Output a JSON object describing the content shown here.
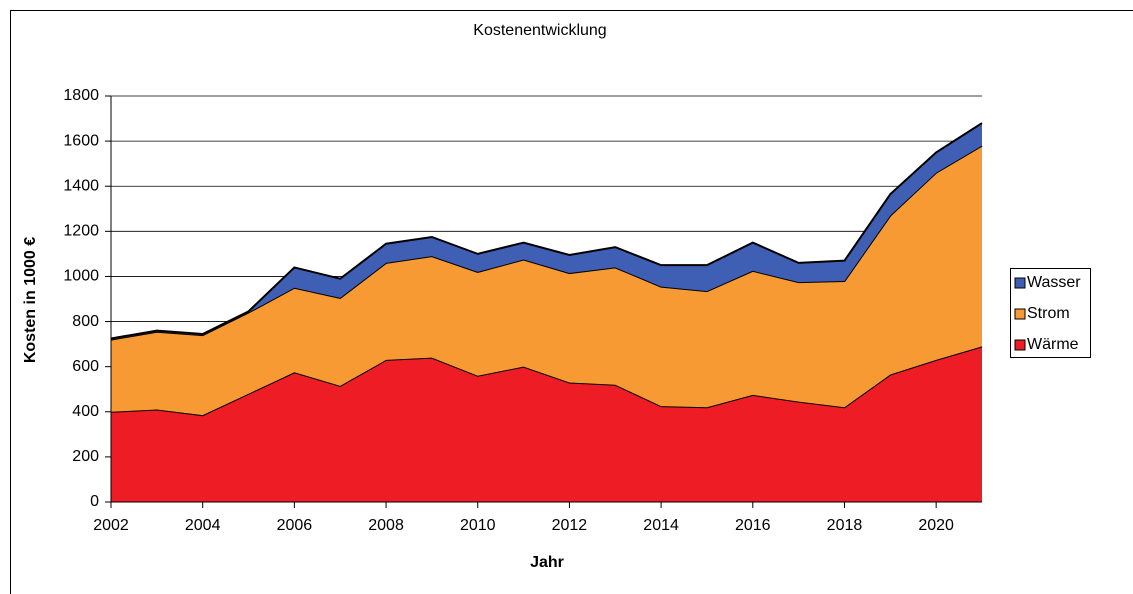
{
  "chart_data": {
    "type": "stacked_area",
    "title": "Kostenentwicklung",
    "x_label": "Jahr",
    "y_label": "Kosten in 1000 €",
    "x": [
      2002,
      2003,
      2004,
      2005,
      2006,
      2007,
      2008,
      2009,
      2010,
      2011,
      2012,
      2013,
      2014,
      2015,
      2016,
      2017,
      2018,
      2019,
      2020,
      2021
    ],
    "series": [
      {
        "name": "Wärme",
        "color": "#ee1c25",
        "values": [
          400,
          410,
          385,
          480,
          575,
          515,
          630,
          640,
          560,
          600,
          530,
          520,
          425,
          420,
          475,
          445,
          420,
          565,
          630,
          690
        ]
      },
      {
        "name": "Strom",
        "color": "#f79a33",
        "values": [
          320,
          345,
          355,
          360,
          375,
          390,
          430,
          450,
          460,
          475,
          485,
          520,
          530,
          515,
          550,
          530,
          560,
          705,
          830,
          890
        ]
      },
      {
        "name": "Wasser",
        "color": "#3f5fb5",
        "values": [
          5,
          5,
          5,
          5,
          90,
          85,
          85,
          85,
          80,
          75,
          80,
          90,
          95,
          115,
          125,
          85,
          90,
          95,
          90,
          100
        ]
      }
    ],
    "xlim": [
      2002,
      2021
    ],
    "xticks": [
      2002,
      2004,
      2006,
      2008,
      2010,
      2012,
      2014,
      2016,
      2018,
      2020
    ],
    "ylim": [
      0,
      1800
    ],
    "yticks": [
      0,
      200,
      400,
      600,
      800,
      1000,
      1200,
      1400,
      1600,
      1800
    ],
    "grid": true,
    "legend": "right"
  }
}
